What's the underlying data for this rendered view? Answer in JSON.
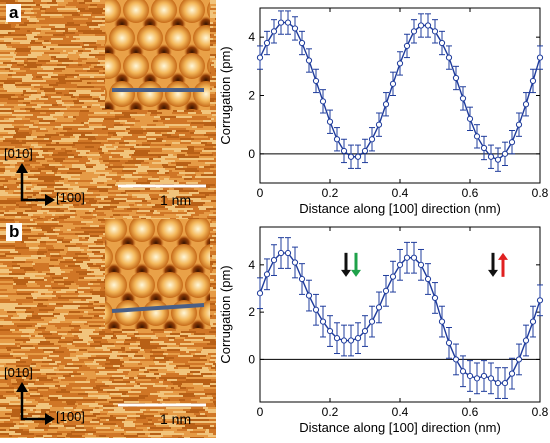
{
  "panels": [
    {
      "label": "a",
      "stm": {
        "dir_y": "[010]",
        "dir_x": "[100]",
        "scale_label": "1 nm"
      },
      "chart_data": {
        "type": "line",
        "xlabel": "Distance along [100] direction (nm)",
        "ylabel": "Corrugation (pm)",
        "xlim": [
          0,
          0.8
        ],
        "ylim": [
          -1,
          5
        ],
        "x_ticks": [
          "0",
          "0.2",
          "0.4",
          "0.6",
          "0.8"
        ],
        "y_ticks": [
          "0",
          "2",
          "4"
        ],
        "error_bars": true,
        "error": 0.4,
        "series": [
          {
            "color": "#1f3c9c",
            "x": [
              0,
              0.02,
              0.04,
              0.06,
              0.08,
              0.1,
              0.12,
              0.14,
              0.16,
              0.18,
              0.2,
              0.22,
              0.24,
              0.26,
              0.28,
              0.3,
              0.32,
              0.34,
              0.36,
              0.38,
              0.4,
              0.42,
              0.44,
              0.46,
              0.48,
              0.5,
              0.52,
              0.54,
              0.56,
              0.58,
              0.6,
              0.62,
              0.64,
              0.66,
              0.68,
              0.7,
              0.72,
              0.74,
              0.76,
              0.78,
              0.8
            ],
            "y": [
              3.3,
              3.8,
              4.2,
              4.5,
              4.5,
              4.3,
              3.8,
              3.2,
              2.5,
              1.8,
              1.1,
              0.5,
              0.1,
              -0.1,
              -0.1,
              0.1,
              0.5,
              1.0,
              1.7,
              2.4,
              3.1,
              3.7,
              4.2,
              4.4,
              4.4,
              4.2,
              3.8,
              3.3,
              2.6,
              1.9,
              1.2,
              0.6,
              0.2,
              -0.1,
              -0.2,
              0.0,
              0.4,
              1.0,
              1.7,
              2.5,
              3.3
            ]
          }
        ]
      }
    },
    {
      "label": "b",
      "stm": {
        "dir_y": "[010]",
        "dir_x": "[100]",
        "scale_label": "1 nm"
      },
      "chart_data": {
        "type": "line",
        "xlabel": "Distance along [100] direction (nm)",
        "ylabel": "Corrugation (pm)",
        "xlim": [
          0,
          0.8
        ],
        "ylim": [
          -1.8,
          5.6
        ],
        "x_ticks": [
          "0",
          "0.2",
          "0.4",
          "0.6",
          "0.8"
        ],
        "y_ticks": [
          "0",
          "2",
          "4"
        ],
        "error_bars": true,
        "error": 0.65,
        "series": [
          {
            "color": "#1f3c9c",
            "x": [
              0,
              0.02,
              0.04,
              0.06,
              0.08,
              0.1,
              0.12,
              0.14,
              0.16,
              0.18,
              0.2,
              0.22,
              0.24,
              0.26,
              0.28,
              0.3,
              0.32,
              0.34,
              0.36,
              0.38,
              0.4,
              0.42,
              0.44,
              0.46,
              0.48,
              0.5,
              0.52,
              0.54,
              0.56,
              0.58,
              0.6,
              0.62,
              0.64,
              0.66,
              0.68,
              0.7,
              0.72,
              0.74,
              0.76,
              0.78,
              0.8
            ],
            "y": [
              2.8,
              3.6,
              4.2,
              4.5,
              4.5,
              4.1,
              3.4,
              2.7,
              2.1,
              1.6,
              1.2,
              0.9,
              0.8,
              0.8,
              0.9,
              1.2,
              1.6,
              2.2,
              2.9,
              3.5,
              4.0,
              4.3,
              4.3,
              4.0,
              3.4,
              2.6,
              1.6,
              0.7,
              0.0,
              -0.5,
              -0.7,
              -0.8,
              -0.7,
              -0.8,
              -1.0,
              -1.0,
              -0.6,
              0.0,
              0.8,
              1.6,
              2.5
            ]
          }
        ],
        "annotations": [
          {
            "x": 0.26,
            "y": 4.0,
            "arrows": [
              {
                "dir": "down",
                "color": "#111111"
              },
              {
                "dir": "down",
                "color": "#1fa24a"
              }
            ]
          },
          {
            "x": 0.68,
            "y": 4.0,
            "arrows": [
              {
                "dir": "down",
                "color": "#111111"
              },
              {
                "dir": "up",
                "color": "#e02020"
              }
            ]
          }
        ]
      }
    }
  ]
}
